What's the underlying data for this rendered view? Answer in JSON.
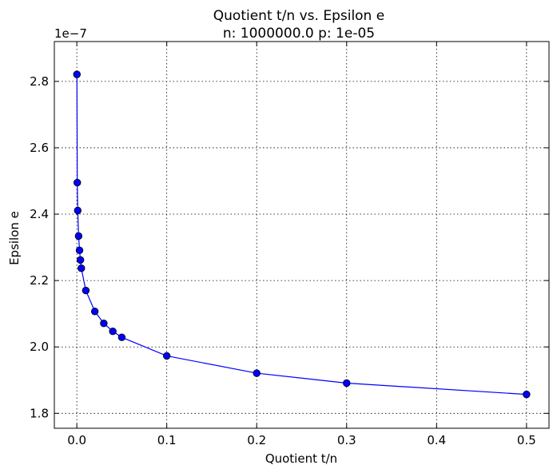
{
  "chart_data": {
    "type": "line",
    "title": "Quotient t/n vs. Epsilon e",
    "subtitle": "n: 1000000.0 p: 1e-05",
    "xlabel": "Quotient t/n",
    "ylabel": "Epsilon e",
    "y_scale_label": "1e−7",
    "xlim": [
      -0.025,
      0.525
    ],
    "ylim": [
      1.755,
      2.92
    ],
    "x_ticks": [
      0.0,
      0.1,
      0.2,
      0.3,
      0.4,
      0.5
    ],
    "x_tick_labels": [
      "0.0",
      "0.1",
      "0.2",
      "0.3",
      "0.4",
      "0.5"
    ],
    "y_ticks": [
      1.8,
      2.0,
      2.2,
      2.4,
      2.6,
      2.8
    ],
    "y_tick_labels": [
      "1.8",
      "2.0",
      "2.2",
      "2.4",
      "2.6",
      "2.8"
    ],
    "grid": true,
    "color": "#0000ff",
    "series": [
      {
        "x": [
          0.0001,
          0.0005,
          0.001,
          0.002,
          0.003,
          0.004,
          0.005,
          0.01,
          0.02,
          0.03,
          0.04,
          0.05,
          0.1,
          0.2,
          0.3,
          0.5
        ],
        "values": [
          2.821,
          2.495,
          2.411,
          2.334,
          2.291,
          2.262,
          2.237,
          2.17,
          2.107,
          2.071,
          2.047,
          2.029,
          1.973,
          1.921,
          1.891,
          1.857
        ]
      }
    ]
  }
}
